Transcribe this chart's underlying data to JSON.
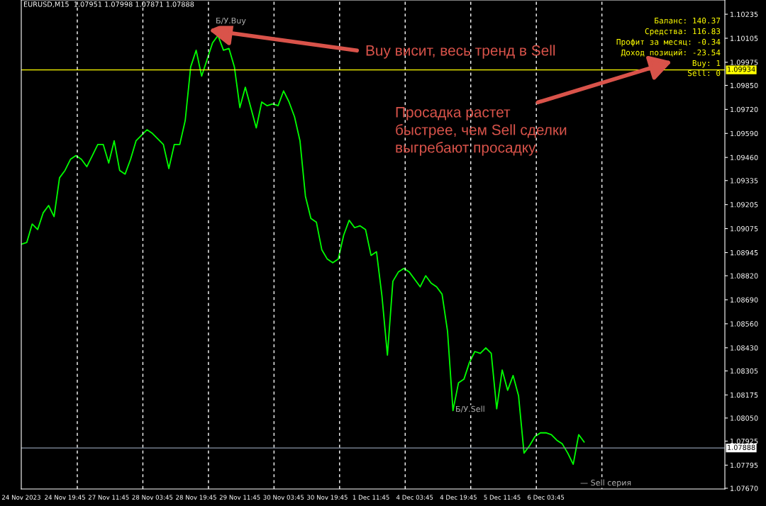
{
  "chart_data": {
    "type": "line",
    "title": "EURUSD,M15  1.07951 1.07998 1.07871 1.07888",
    "categories": [
      "24 Nov 2023",
      null,
      null,
      null,
      null,
      null,
      null,
      null,
      "24 Nov 19:45",
      null,
      null,
      null,
      null,
      null,
      null,
      null,
      "27 Nov 11:45",
      null,
      null,
      null,
      null,
      null,
      null,
      null,
      "28 Nov 03:45",
      null,
      null,
      null,
      null,
      null,
      null,
      null,
      "28 Nov 19:45",
      null,
      null,
      null,
      null,
      null,
      null,
      null,
      "29 Nov 11:45",
      null,
      null,
      null,
      null,
      null,
      null,
      null,
      "30 Nov 03:45",
      null,
      null,
      null,
      null,
      null,
      null,
      null,
      "30 Nov 19:45",
      null,
      null,
      null,
      null,
      null,
      null,
      null,
      "1 Dec 11:45",
      null,
      null,
      null,
      null,
      null,
      null,
      null,
      "4 Dec 03:45",
      null,
      null,
      null,
      null,
      null,
      null,
      null,
      "4 Dec 19:45",
      null,
      null,
      null,
      null,
      null,
      null,
      null,
      "5 Dec 11:45",
      null,
      null,
      null,
      null,
      null,
      null,
      null,
      "6 Dec 03:45",
      null,
      null,
      null,
      null,
      null,
      null,
      null,
      null,
      null,
      null,
      null,
      null,
      null,
      null,
      null,
      null,
      null,
      null,
      null,
      null,
      null,
      null,
      null,
      null,
      null,
      null,
      null,
      null,
      null,
      null,
      null,
      null
    ],
    "series": [
      {
        "color": "#00ff00",
        "values": [
          1.0899,
          1.09,
          1.091,
          1.0907,
          1.0916,
          1.092,
          1.0914,
          1.0935,
          1.0939,
          1.0945,
          1.0947,
          1.0945,
          1.0941,
          1.0947,
          1.0953,
          1.0953,
          1.0943,
          1.0955,
          1.0939,
          1.0937,
          1.0945,
          1.0955,
          1.0958,
          1.0961,
          1.0959,
          1.0956,
          1.0953,
          1.094,
          1.0953,
          1.0953,
          1.0966,
          1.0995,
          1.1004,
          1.099,
          1.0999,
          1.1008,
          1.1012,
          1.1004,
          1.1005,
          1.0995,
          1.0973,
          1.0984,
          1.0973,
          1.0962,
          1.0976,
          1.0974,
          1.0975,
          1.0974,
          1.0982,
          1.0976,
          1.0968,
          1.0955,
          1.0925,
          1.0913,
          1.0911,
          1.0896,
          1.0891,
          1.0889,
          1.0891,
          1.0904,
          1.0912,
          1.0908,
          1.0909,
          1.0907,
          1.0893,
          1.0895,
          1.0871,
          1.0839,
          1.0879,
          1.0884,
          1.0886,
          1.0884,
          1.088,
          1.0876,
          1.0882,
          1.0878,
          1.0876,
          1.0872,
          1.0852,
          1.0809,
          1.0824,
          1.0826,
          1.0835,
          1.0841,
          1.084,
          1.0843,
          1.084,
          1.081,
          1.0831,
          1.082,
          1.0828,
          1.0817,
          1.0786,
          1.079,
          1.0795,
          1.0797,
          1.0797,
          1.0796,
          1.0793,
          1.0791,
          1.0786,
          1.078,
          1.0796,
          1.0792,
          null,
          null,
          null,
          null,
          null,
          null,
          null,
          null,
          null,
          null,
          null,
          null,
          null,
          null,
          null,
          null,
          null,
          null,
          null,
          null,
          null,
          null,
          null,
          null,
          null
        ]
      }
    ],
    "ylim": [
      1.07666,
      1.10312
    ],
    "yticks": [
      {
        "value": 1.10235,
        "label": "1.10235"
      },
      {
        "value": 1.10105,
        "label": "1.10105"
      },
      {
        "value": 1.09975,
        "label": "1.09975"
      },
      {
        "value": 1.0985,
        "label": "1.09850"
      },
      {
        "value": 1.0972,
        "label": "1.09720"
      },
      {
        "value": 1.0959,
        "label": "1.09590"
      },
      {
        "value": 1.0946,
        "label": "1.09460"
      },
      {
        "value": 1.09335,
        "label": "1.09335"
      },
      {
        "value": 1.09205,
        "label": "1.09205"
      },
      {
        "value": 1.09075,
        "label": "1.09075"
      },
      {
        "value": 1.08945,
        "label": "1.08945"
      },
      {
        "value": 1.0882,
        "label": "1.08820"
      },
      {
        "value": 1.0869,
        "label": "1.08690"
      },
      {
        "value": 1.0856,
        "label": "1.08560"
      },
      {
        "value": 1.0843,
        "label": "1.08430"
      },
      {
        "value": 1.08305,
        "label": "1.08305"
      },
      {
        "value": 1.08175,
        "label": "1.08175"
      },
      {
        "value": 1.0805,
        "label": "1.08050"
      },
      {
        "value": 1.07925,
        "label": "1.07925"
      },
      {
        "value": 1.07795,
        "label": "1.07795"
      },
      {
        "value": 1.0767,
        "label": "1.07670"
      }
    ],
    "ref_lines": [
      {
        "axis": "y",
        "value": 1.09934,
        "label": "1.09934",
        "color": "#ffff00",
        "line_style": "solid"
      },
      {
        "axis": "y",
        "value": 1.07888,
        "label": "1.07888",
        "color": "#8a96a8",
        "line_style": "solid"
      }
    ],
    "annotations": [
      "Buy висит, весь тренд в Sell",
      "Просадка растет\nбыстрее, чем Sell сделки\nвыгребают просадку.",
      "Баланс: 140.37",
      "Средства: 116.83",
      "Профит за месяц: -0.34",
      "Доход позиций: -23.54",
      "Buy: 1",
      "Sell: 0",
      "Б/У.Buy",
      "Б/У.Sell",
      "— Sell серия"
    ],
    "grid": false,
    "legend": false,
    "line_style": "solid",
    "marker": "none"
  }
}
